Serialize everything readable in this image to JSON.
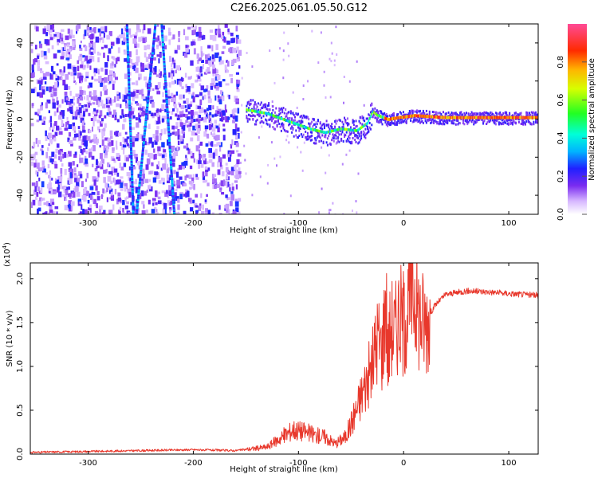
{
  "title": "C2E6.2025.061.05.50.G12",
  "chart_data": [
    {
      "type": "heatmap",
      "name": "spectrogram",
      "xlabel": "Height of straight line (km)",
      "ylabel": "Frequency (Hz)",
      "xlim": [
        -355,
        128
      ],
      "ylim": [
        -50,
        50
      ],
      "xticks": [
        -300,
        -200,
        -100,
        0,
        100
      ],
      "yticks": [
        -40,
        -20,
        0,
        20,
        40
      ],
      "colorbar": {
        "label": "Normalized spectral amplitude",
        "range": [
          0.0,
          1.0
        ],
        "ticks": [
          0.0,
          0.2,
          0.4,
          0.6,
          0.8
        ],
        "tick_labels": [
          "0.0",
          "0.2",
          "0.4",
          "0.6",
          "0.8"
        ]
      },
      "features": {
        "noise_region_x": [
          -355,
          -157
        ],
        "ridge": {
          "x": [
            -150,
            -130,
            -110,
            -90,
            -75,
            -60,
            -45,
            -35,
            -30,
            -25,
            -15,
            -5,
            10,
            40,
            80,
            128
          ],
          "freq": [
            5,
            3,
            -1,
            -5,
            -7,
            -5,
            -6,
            -2,
            4,
            2,
            0,
            1,
            2,
            1,
            1,
            1
          ]
        },
        "diagonal_tracks": [
          {
            "x": [
              -263,
              -257
            ],
            "freq": [
              50,
              -50
            ]
          },
          {
            "x": [
              -254,
              -236
            ],
            "freq": [
              -50,
              50
            ]
          },
          {
            "x": [
              -230,
              -218
            ],
            "freq": [
              50,
              -50
            ]
          }
        ]
      }
    },
    {
      "type": "line",
      "name": "snr",
      "xlabel": "Height of straight line (km)",
      "ylabel": "SNR (10 * v/v)",
      "multiplier": "(x10",
      "multiplier_exp": "4",
      "multiplier_close": ")",
      "xlim": [
        -355,
        128
      ],
      "ylim": [
        0,
        2.18
      ],
      "xticks": [
        -300,
        -200,
        -100,
        0,
        100
      ],
      "yticks": [
        0.0,
        0.5,
        1.0,
        1.5,
        2.0
      ],
      "ytick_labels": [
        "0.0",
        "0.5",
        "1.0",
        "1.5",
        "2.0"
      ],
      "color": "#e8382c",
      "series": [
        {
          "name": "SNR",
          "x": [
            -355,
            -300,
            -250,
            -200,
            -160,
            -130,
            -115,
            -105,
            -95,
            -85,
            -75,
            -65,
            -55,
            -45,
            -38,
            -30,
            -25,
            -20,
            -17,
            -15,
            -12,
            -8,
            -5,
            0,
            5,
            10,
            15,
            20,
            30,
            40,
            60,
            80,
            100,
            128
          ],
          "y": [
            0.02,
            0.03,
            0.04,
            0.05,
            0.04,
            0.08,
            0.2,
            0.28,
            0.26,
            0.22,
            0.2,
            0.12,
            0.2,
            0.5,
            0.75,
            1.0,
            1.35,
            1.2,
            1.9,
            1.1,
            1.5,
            1.4,
            1.6,
            1.5,
            1.75,
            1.9,
            1.6,
            1.5,
            1.7,
            1.82,
            1.86,
            1.85,
            1.83,
            1.81
          ]
        }
      ]
    }
  ]
}
